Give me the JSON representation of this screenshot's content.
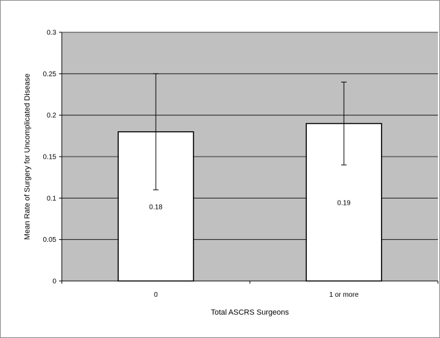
{
  "chart_data": {
    "type": "bar",
    "title": "",
    "xlabel": "Total ASCRS Surgeons",
    "ylabel": "Mean Rate of Surgery for Uncomplicated Disease",
    "categories": [
      "0",
      "1 or more"
    ],
    "values": [
      0.18,
      0.19
    ],
    "value_labels": [
      "0.18",
      "0.19"
    ],
    "error_bars": [
      {
        "low": 0.11,
        "high": 0.25
      },
      {
        "low": 0.14,
        "high": 0.24
      }
    ],
    "ylim": [
      0,
      0.3
    ],
    "yticks": [
      0,
      0.05,
      0.1,
      0.15,
      0.2,
      0.25,
      0.3
    ],
    "ytick_labels": [
      "0",
      "0.05",
      "0.1",
      "0.15",
      "0.2",
      "0.25",
      "0.3"
    ],
    "grid": true,
    "legend": "none",
    "colors": {
      "plot_background": "#c0c0c0",
      "bar_fill": "#ffffff",
      "bar_stroke": "#000000",
      "gridline": "#000000"
    }
  }
}
